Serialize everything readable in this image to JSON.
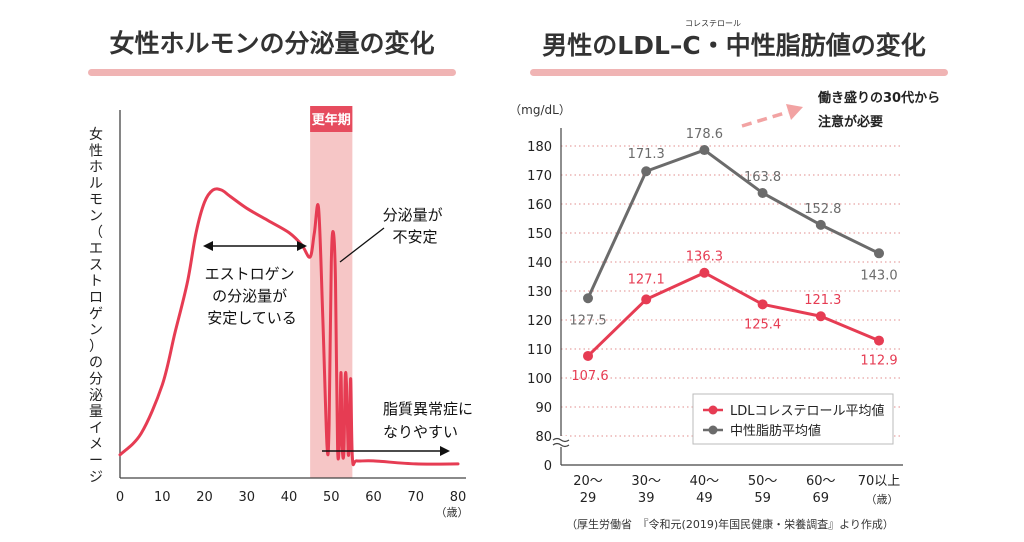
{
  "colors": {
    "red": "#e63c53",
    "gray": "#6b6b6b",
    "pink_band": "#f6c6c6",
    "pink_label": "#e64c5e",
    "underline": "#f0b4b4",
    "grid_dot": "#e8a5a5",
    "arrow_pink": "#f2a3a3"
  },
  "left": {
    "title": "女性ホルモンの分泌量の変化",
    "ylabel": "女性ホルモン（エストロゲン）の分泌量イメージ",
    "band_label": "更年期",
    "unit": "（歳）",
    "x_ticks": [
      "0",
      "10",
      "20",
      "30",
      "40",
      "50",
      "60",
      "70",
      "80"
    ],
    "annot_stable": [
      "エストロゲン",
      "の分泌量が",
      "安定している"
    ],
    "annot_unstable": [
      "分泌量が",
      "不安定"
    ],
    "annot_risk": [
      "脂質異常症に",
      "なりやすい"
    ]
  },
  "right": {
    "title_main": "男性のLDL–C・中性脂肪値の変化",
    "title_ruby": "コレステロール",
    "y_unit": "（mg/dL）",
    "note": [
      "働き盛りの30代から",
      "注意が必要"
    ],
    "age_unit": "（歳）",
    "source": "（厚生労働省　『令和元(2019)年国民健康・栄養調査』より作成）",
    "legend": [
      "LDLコレステロール平均値",
      "中性脂肪平均値"
    ]
  },
  "chart_data": [
    {
      "type": "line",
      "title": "女性ホルモンの分泌量の変化",
      "xlabel": "（歳）",
      "ylabel": "女性ホルモン（エストロゲン）の分泌量イメージ",
      "x_ticks": [
        0,
        10,
        20,
        30,
        40,
        50,
        60,
        70,
        80
      ],
      "xlim": [
        0,
        80
      ],
      "highlight_band": {
        "from": 45,
        "to": 55,
        "label": "更年期"
      },
      "series": [
        {
          "x": [
            0,
            5,
            10,
            13,
            16,
            18,
            20,
            22,
            24,
            26,
            30,
            35,
            40,
            43,
            45,
            46,
            47,
            48,
            49,
            49.5,
            50,
            50.5,
            51,
            51.5,
            52,
            52.3,
            52.6,
            53,
            53.3,
            53.6,
            54,
            54.3,
            54.6,
            55,
            56,
            60,
            70,
            80
          ],
          "y": [
            0.05,
            0.12,
            0.28,
            0.45,
            0.62,
            0.78,
            0.88,
            0.92,
            0.92,
            0.9,
            0.86,
            0.82,
            0.78,
            0.74,
            0.7,
            0.78,
            0.86,
            0.5,
            0.08,
            0.15,
            0.68,
            0.78,
            0.62,
            0.07,
            0.12,
            0.32,
            0.08,
            0.06,
            0.3,
            0.28,
            0.06,
            0.1,
            0.3,
            0.04,
            0.03,
            0.03,
            0.02,
            0.02
          ]
        }
      ]
    },
    {
      "type": "line",
      "title": "男性のLDL–C・中性脂肪値の変化",
      "ylabel": "（mg/dL）",
      "xlabel": "（歳）",
      "categories": [
        "20～29",
        "30～39",
        "40～49",
        "50～59",
        "60～69",
        "70以上"
      ],
      "y_ticks": [
        0,
        80,
        90,
        100,
        110,
        120,
        130,
        140,
        150,
        160,
        170,
        180
      ],
      "ylim": [
        80,
        185
      ],
      "axis_break": true,
      "grid": true,
      "legend_position": "bottom-right",
      "series": [
        {
          "name": "LDLコレステロール平均値",
          "values": [
            107.6,
            127.1,
            136.3,
            125.4,
            121.3,
            112.9
          ]
        },
        {
          "name": "中性脂肪平均値",
          "values": [
            127.5,
            171.3,
            178.6,
            163.8,
            152.8,
            143.0
          ]
        }
      ]
    }
  ]
}
